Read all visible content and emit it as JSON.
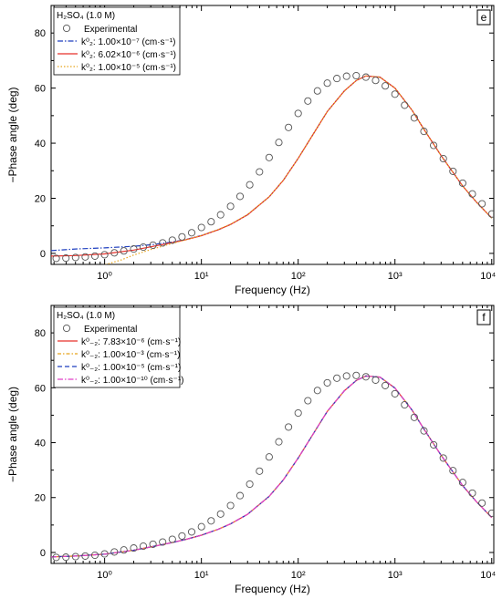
{
  "chart_data": [
    {
      "type": "line",
      "panel_label": "e",
      "legend_title": "H₂SO₄ (1.0 M)",
      "xlabel": "Frequency (Hz)",
      "ylabel": "−Phase angle (deg)",
      "xscale": "log",
      "xlim": [
        0.28,
        10500
      ],
      "ylim": [
        -4,
        90
      ],
      "x_tick_labels": [
        "10⁰",
        "10¹",
        "10²",
        "10³",
        "10⁴"
      ],
      "y_ticks": [
        0,
        20,
        40,
        60,
        80
      ],
      "legend_position": "top-left",
      "experimental": {
        "name": "Experimental",
        "x": [
          0.316,
          0.398,
          0.501,
          0.631,
          0.794,
          1.0,
          1.26,
          1.58,
          2.0,
          2.51,
          3.16,
          3.98,
          5.01,
          6.31,
          7.94,
          10.0,
          12.6,
          15.8,
          20.0,
          25.1,
          31.6,
          39.8,
          50.1,
          63.1,
          79.4,
          100,
          126,
          158,
          200,
          251,
          316,
          398,
          501,
          631,
          794,
          1000,
          1259,
          1585,
          1995,
          2512,
          3162,
          3981,
          5012,
          6310,
          7943,
          10000
        ],
        "y": [
          -1.8,
          -1.7,
          -1.5,
          -1.3,
          -1.0,
          -0.5,
          0.2,
          0.9,
          1.6,
          2.3,
          3.0,
          3.8,
          4.8,
          6.0,
          7.5,
          9.4,
          11.5,
          14.0,
          17.1,
          20.7,
          24.9,
          29.6,
          34.8,
          40.3,
          45.7,
          50.8,
          55.3,
          59.0,
          61.8,
          63.5,
          64.3,
          64.5,
          64.0,
          62.8,
          60.8,
          57.8,
          53.8,
          49.2,
          44.3,
          39.2,
          34.4,
          29.8,
          25.5,
          21.6,
          18.0,
          14.3
        ]
      },
      "series": [
        {
          "name": "k⁰₂: 1.00×10⁻⁷ (cm·s⁻¹)",
          "color": "#1f3fbf",
          "dash": "6 2 1.5 2",
          "x": [
            0.28,
            0.5,
            1.0,
            2.0,
            3.0,
            5.0,
            7.0,
            10,
            15,
            20,
            30,
            50,
            70,
            100,
            150,
            200,
            300,
            400,
            500,
            700,
            1000,
            1500,
            2000,
            3000,
            5000,
            7000,
            10000
          ],
          "y": [
            1.0,
            1.6,
            2.0,
            2.6,
            3.1,
            4.1,
            5.1,
            6.5,
            8.6,
            10.5,
            14.0,
            20.5,
            26.5,
            34.5,
            44.5,
            51.5,
            59.0,
            62.8,
            64.4,
            64.0,
            60.0,
            52.0,
            45.0,
            35.5,
            24.5,
            18.5,
            12.8
          ]
        },
        {
          "name": "k⁰₂: 6.02×10⁻⁶ (cm·s⁻¹)",
          "color": "#e8302a",
          "dash": "",
          "x": [
            0.28,
            0.5,
            1.0,
            2.0,
            3.0,
            5.0,
            7.0,
            10,
            15,
            20,
            30,
            50,
            70,
            100,
            150,
            200,
            300,
            400,
            500,
            700,
            1000,
            1500,
            2000,
            3000,
            5000,
            7000,
            10000
          ],
          "y": [
            -1.0,
            -0.8,
            -0.2,
            1.2,
            2.4,
            3.9,
            5.0,
            6.4,
            8.6,
            10.5,
            14.0,
            20.5,
            26.5,
            34.5,
            44.5,
            51.5,
            59.0,
            62.8,
            64.4,
            64.0,
            60.0,
            52.0,
            45.0,
            35.5,
            24.5,
            18.5,
            12.8
          ]
        },
        {
          "name": "k⁰₂: 1.00×10⁻⁵ (cm·s⁻¹)",
          "color": "#e8a51c",
          "dash": "1.5 2",
          "x": [
            0.28,
            0.4,
            0.6,
            1.0,
            1.5,
            2.0,
            3.0,
            5.0,
            7.0,
            10,
            15,
            20,
            30,
            50,
            70,
            100,
            150,
            200,
            300,
            400,
            500,
            700,
            1000,
            1500,
            2000,
            3000,
            5000,
            7000,
            10000
          ],
          "y": [
            -4.5,
            -5.0,
            -5.2,
            -4.2,
            -2.3,
            -0.6,
            1.4,
            3.6,
            5.0,
            6.5,
            8.7,
            10.6,
            14.1,
            20.5,
            26.5,
            34.5,
            44.5,
            51.5,
            59.0,
            62.8,
            64.4,
            64.0,
            60.0,
            52.0,
            45.0,
            35.5,
            24.5,
            18.5,
            12.8
          ]
        }
      ]
    },
    {
      "type": "line",
      "panel_label": "f",
      "legend_title": "H₂SO₄ (1.0 M)",
      "xlabel": "Frequency (Hz)",
      "ylabel": "−Phase angle (deg)",
      "xscale": "log",
      "xlim": [
        0.28,
        10500
      ],
      "ylim": [
        -4,
        90
      ],
      "x_tick_labels": [
        "10⁰",
        "10¹",
        "10²",
        "10³",
        "10⁴"
      ],
      "y_ticks": [
        0,
        20,
        40,
        60,
        80
      ],
      "legend_position": "top-left",
      "experimental": {
        "name": "Experimental",
        "x": [
          0.316,
          0.398,
          0.501,
          0.631,
          0.794,
          1.0,
          1.26,
          1.58,
          2.0,
          2.51,
          3.16,
          3.98,
          5.01,
          6.31,
          7.94,
          10.0,
          12.6,
          15.8,
          20.0,
          25.1,
          31.6,
          39.8,
          50.1,
          63.1,
          79.4,
          100,
          126,
          158,
          200,
          251,
          316,
          398,
          501,
          631,
          794,
          1000,
          1259,
          1585,
          1995,
          2512,
          3162,
          3981,
          5012,
          6310,
          7943,
          10000
        ],
        "y": [
          -1.8,
          -1.7,
          -1.5,
          -1.3,
          -1.0,
          -0.5,
          0.2,
          0.9,
          1.6,
          2.3,
          3.0,
          3.8,
          4.8,
          6.0,
          7.5,
          9.4,
          11.5,
          14.0,
          17.1,
          20.7,
          24.9,
          29.6,
          34.8,
          40.3,
          45.7,
          50.8,
          55.3,
          59.0,
          61.8,
          63.5,
          64.3,
          64.5,
          64.0,
          62.8,
          60.8,
          57.8,
          53.8,
          49.2,
          44.3,
          39.2,
          34.4,
          29.8,
          25.5,
          21.6,
          18.0,
          14.3
        ]
      },
      "series": [
        {
          "name": "k⁰₋₂: 7.83×10⁻⁶ (cm·s⁻¹)",
          "color": "#e8302a",
          "dash": "",
          "x": [
            0.28,
            0.5,
            1.0,
            2.0,
            3.0,
            5.0,
            7.0,
            10,
            15,
            20,
            30,
            50,
            70,
            100,
            150,
            200,
            300,
            400,
            500,
            700,
            1000,
            1500,
            2000,
            3000,
            5000,
            7000,
            10000
          ],
          "y": [
            -1.6,
            -1.3,
            -0.6,
            0.8,
            2.0,
            3.6,
            4.8,
            6.3,
            8.5,
            10.4,
            13.9,
            20.4,
            26.4,
            34.4,
            44.4,
            51.4,
            58.9,
            62.7,
            64.3,
            63.9,
            59.9,
            51.9,
            44.9,
            35.4,
            24.4,
            18.4,
            12.7
          ]
        },
        {
          "name": "k⁰₋₂: 1.00×10⁻³ (cm·s⁻¹)",
          "color": "#e8a51c",
          "dash": "4 2 1.5 2",
          "x": [
            0.28,
            0.5,
            1.0,
            2.0,
            3.0,
            5.0,
            7.0,
            10,
            15,
            20,
            30,
            50,
            70,
            100,
            150,
            200,
            300,
            400,
            500,
            700,
            1000,
            1500,
            2000,
            3000,
            5000,
            7000,
            10000
          ],
          "y": [
            -1.6,
            -1.3,
            -0.6,
            0.8,
            2.0,
            3.6,
            4.8,
            6.3,
            8.5,
            10.4,
            13.9,
            20.4,
            26.4,
            34.4,
            44.4,
            51.4,
            58.9,
            62.7,
            64.3,
            63.9,
            59.9,
            51.9,
            44.9,
            35.4,
            24.4,
            18.4,
            12.7
          ]
        },
        {
          "name": "k⁰₋₂: 1.00×10⁻⁵ (cm·s⁻¹)",
          "color": "#1f3fbf",
          "dash": "5 3",
          "x": [
            0.28,
            0.5,
            1.0,
            2.0,
            3.0,
            5.0,
            7.0,
            10,
            15,
            20,
            30,
            50,
            70,
            100,
            150,
            200,
            300,
            400,
            500,
            700,
            1000,
            1500,
            2000,
            3000,
            5000,
            7000,
            10000
          ],
          "y": [
            -1.6,
            -1.3,
            -0.6,
            0.8,
            2.0,
            3.6,
            4.8,
            6.3,
            8.5,
            10.4,
            13.9,
            20.4,
            26.4,
            34.4,
            44.4,
            51.4,
            58.9,
            62.7,
            64.3,
            63.9,
            59.9,
            51.9,
            44.9,
            35.4,
            24.4,
            18.4,
            12.7
          ]
        },
        {
          "name": "k⁰₋₂: 1.00×10⁻¹⁰ (cm·s⁻¹)",
          "color": "#e040c8",
          "dash": "6 2 1.5 2",
          "x": [
            0.28,
            0.5,
            1.0,
            2.0,
            3.0,
            5.0,
            7.0,
            10,
            15,
            20,
            30,
            50,
            70,
            100,
            150,
            200,
            300,
            400,
            500,
            700,
            1000,
            1500,
            2000,
            3000,
            5000,
            7000,
            10000
          ],
          "y": [
            -1.6,
            -1.3,
            -0.6,
            0.8,
            2.0,
            3.6,
            4.8,
            6.3,
            8.5,
            10.4,
            13.9,
            20.4,
            26.4,
            34.4,
            44.4,
            51.4,
            58.9,
            62.7,
            64.3,
            63.9,
            59.9,
            51.9,
            44.9,
            35.4,
            24.4,
            18.4,
            12.7
          ]
        }
      ]
    }
  ]
}
